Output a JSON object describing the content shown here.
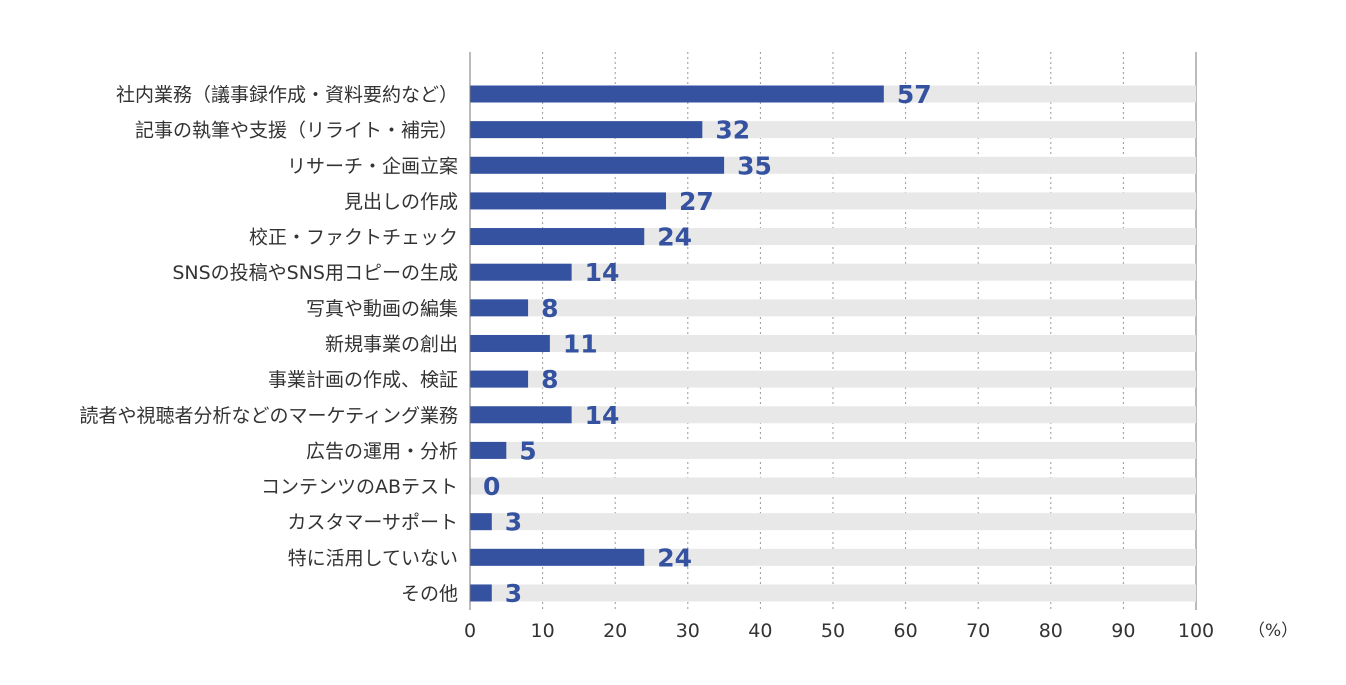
{
  "chart_data": {
    "type": "bar",
    "orientation": "horizontal",
    "categories": [
      "社内業務（議事録作成・資料要約など）",
      "記事の執筆や支援（リライト・補完）",
      "リサーチ・企画立案",
      "見出しの作成",
      "校正・ファクトチェック",
      "SNSの投稿やSNS用コピーの生成",
      "写真や動画の編集",
      "新規事業の創出",
      "事業計画の作成、検証",
      "読者や視聴者分析などのマーケティング業務",
      "広告の運用・分析",
      "コンテンツのABテスト",
      "カスタマーサポート",
      "特に活用していない",
      "その他"
    ],
    "values": [
      57,
      32,
      35,
      27,
      24,
      14,
      8,
      11,
      8,
      14,
      5,
      0,
      3,
      24,
      3
    ],
    "xlim": [
      0,
      100
    ],
    "xticks": [
      0,
      10,
      20,
      30,
      40,
      50,
      60,
      70,
      80,
      90,
      100
    ],
    "x_unit_label": "（%）",
    "grid": "vertical dotted",
    "colors": {
      "bar": "#3552a0",
      "track": "#e8e8e8",
      "value_text": "#3552a0",
      "text": "#333333",
      "grid": "#999999"
    }
  }
}
